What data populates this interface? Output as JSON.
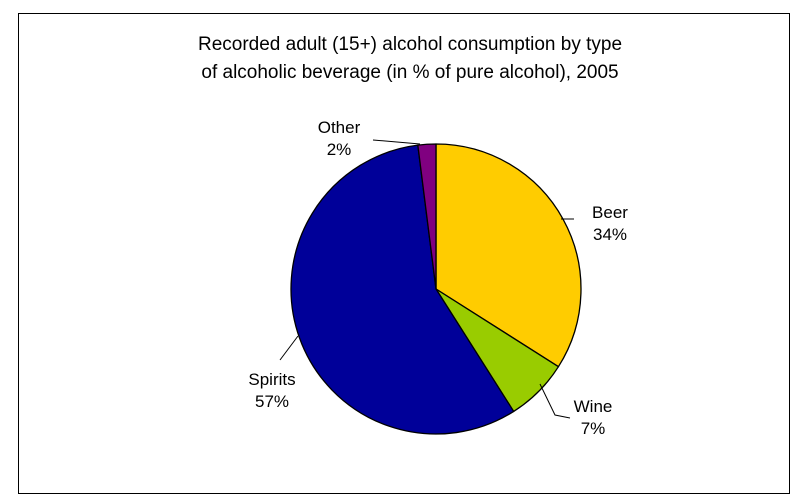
{
  "chart_data": {
    "type": "pie",
    "title": "Recorded adult (15+) alcohol consumption by type of alcoholic beverage (in % of pure alcohol), 2005",
    "title_lines": [
      "Recorded adult (15+) alcohol consumption by type",
      "of alcoholic beverage (in % of pure alcohol), 2005"
    ],
    "slices": [
      {
        "label": "Beer",
        "value": 34,
        "value_label": "34%",
        "color": "#FFCC00"
      },
      {
        "label": "Wine",
        "value": 7,
        "value_label": "7%",
        "color": "#99CC00"
      },
      {
        "label": "Spirits",
        "value": 57,
        "value_label": "57%",
        "color": "#000099"
      },
      {
        "label": "Other",
        "value": 2,
        "value_label": "2%",
        "color": "#800080"
      }
    ],
    "start_angle": "12 o'clock",
    "direction": "clockwise",
    "legend": "none"
  }
}
